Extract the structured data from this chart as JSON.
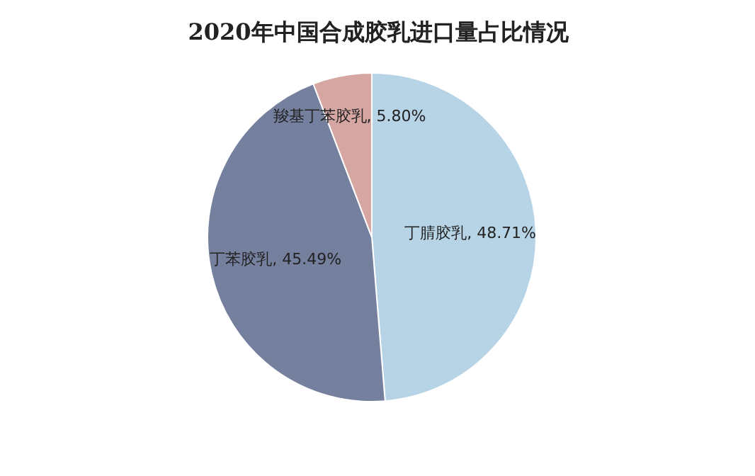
{
  "chart_data": {
    "type": "pie",
    "title": "2020年中国合成胶乳进口量占比情况",
    "categories": [
      "丁腈胶乳",
      "丁苯胶乳",
      "羧基丁苯胶乳"
    ],
    "values": [
      48.71,
      45.49,
      5.8
    ],
    "value_labels": [
      "48.71%",
      "45.49%",
      "5.80%"
    ],
    "colors": [
      "#b7d3e6",
      "#75809f",
      "#d6a6a2"
    ],
    "legend": false
  }
}
